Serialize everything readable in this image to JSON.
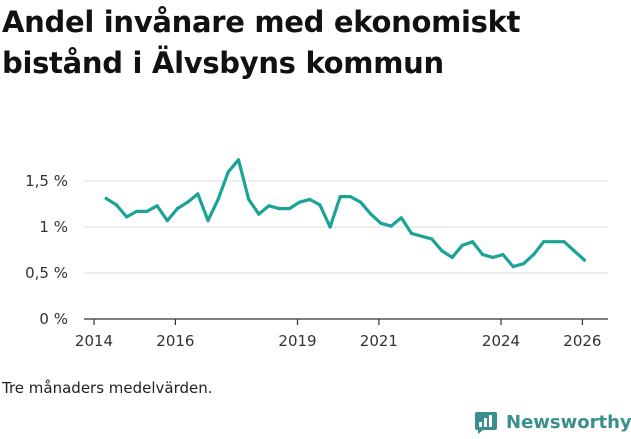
{
  "title": "Andel invånare med ekonomiskt bistånd i Älvsbyns kommun",
  "note": "Tre månaders medelvärden.",
  "brand": {
    "name": "Newsworthy",
    "icon": "newsworthy-logo-icon",
    "color": "#3a8f8c"
  },
  "chart_data": {
    "type": "line",
    "title": "Andel invånare med ekonomiskt bistånd i Älvsbyns kommun",
    "xlabel": "",
    "ylabel": "",
    "x_ticks": [
      "2014",
      "2016",
      "2019",
      "2021",
      "2024",
      "2026"
    ],
    "y_ticks": [
      "0 %",
      "0,5 %",
      "1 %",
      "1,5 %"
    ],
    "ylim": [
      0,
      1.5
    ],
    "grid": "horizontal",
    "line_color": "#1aa396",
    "series": [
      {
        "x": [
          2014.3,
          2014.55,
          2014.8,
          2015.05,
          2015.3,
          2015.55,
          2015.8,
          2016.05,
          2016.3,
          2016.55,
          2016.8,
          2017.05,
          2017.3,
          2017.55,
          2017.8,
          2018.05,
          2018.3,
          2018.55,
          2018.8,
          2019.05,
          2019.3,
          2019.55,
          2019.8,
          2020.05,
          2020.3,
          2020.55,
          2020.8,
          2021.05,
          2021.3,
          2021.55,
          2021.8,
          2022.05,
          2022.3,
          2022.55,
          2022.8,
          2023.05,
          2023.3,
          2023.55,
          2023.8,
          2024.05,
          2024.3,
          2024.55,
          2024.8,
          2025.05,
          2025.3,
          2025.55,
          2025.8,
          2026.05
        ],
        "values": [
          1.31,
          1.24,
          1.11,
          1.17,
          1.17,
          1.23,
          1.07,
          1.2,
          1.27,
          1.36,
          1.07,
          1.3,
          1.6,
          1.73,
          1.3,
          1.14,
          1.23,
          1.2,
          1.2,
          1.27,
          1.3,
          1.24,
          1.0,
          1.33,
          1.33,
          1.27,
          1.14,
          1.04,
          1.01,
          1.1,
          0.93,
          0.9,
          0.87,
          0.74,
          0.67,
          0.8,
          0.84,
          0.7,
          0.67,
          0.7,
          0.57,
          0.6,
          0.7,
          0.84,
          0.84,
          0.84,
          0.74,
          0.64
        ]
      }
    ]
  }
}
